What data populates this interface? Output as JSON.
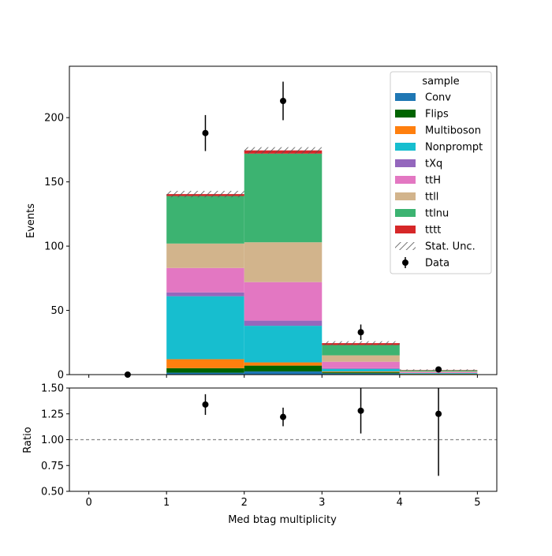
{
  "chart_data": [
    {
      "type": "bar",
      "stacked": true,
      "x_edges": [
        0,
        1,
        2,
        3,
        4,
        5
      ],
      "xlim": [
        -0.25,
        5.25
      ],
      "ylim": [
        0,
        240
      ],
      "ylabel": "Events",
      "y_ticks": [
        0,
        50,
        100,
        150,
        200
      ],
      "legend_title": "sample",
      "legend_position": "top-right",
      "series": [
        {
          "name": "Conv",
          "color": "#1f77b4",
          "values": [
            0,
            1.5,
            2.5,
            1.0,
            0.3
          ]
        },
        {
          "name": "Flips",
          "color": "#006400",
          "values": [
            0,
            3.5,
            4.5,
            0.8,
            0.2
          ]
        },
        {
          "name": "Multiboson",
          "color": "#ff7f0e",
          "values": [
            0,
            7.0,
            2.5,
            0.6,
            0.2
          ]
        },
        {
          "name": "Nonprompt",
          "color": "#17becf",
          "values": [
            0,
            49.0,
            28.5,
            2.0,
            0.5
          ]
        },
        {
          "name": "tXq",
          "color": "#9467bd",
          "values": [
            0,
            3.0,
            4.0,
            0.6,
            0.1
          ]
        },
        {
          "name": "ttH",
          "color": "#e377c2",
          "values": [
            0,
            19.0,
            30.0,
            5.0,
            0.7
          ]
        },
        {
          "name": "ttll",
          "color": "#d2b48c",
          "values": [
            0,
            19.0,
            31.0,
            5.0,
            0.5
          ]
        },
        {
          "name": "ttlnu",
          "color": "#3cb371",
          "values": [
            0,
            37.0,
            69.0,
            8.0,
            0.8
          ]
        },
        {
          "name": "tttt",
          "color": "#d62728",
          "values": [
            0,
            1.5,
            2.5,
            1.5,
            0.3
          ]
        }
      ],
      "stat_unc": {
        "name": "Stat. Unc.",
        "values": [
          0,
          2.5,
          2.5,
          1.5,
          0.5
        ]
      },
      "data": {
        "name": "Data",
        "x": [
          0.5,
          1.5,
          2.5,
          3.5,
          4.5
        ],
        "y": [
          0,
          188,
          213,
          33,
          4
        ],
        "yerr": [
          0,
          14,
          15,
          6,
          2
        ]
      }
    },
    {
      "type": "scatter",
      "xlabel": "Med btag multiplicity",
      "ylabel": "Ratio",
      "xlim": [
        -0.25,
        5.25
      ],
      "ylim": [
        0.5,
        1.5
      ],
      "x_ticks": [
        0,
        1,
        2,
        3,
        4,
        5
      ],
      "y_ticks": [
        "0.50",
        "0.75",
        "1.00",
        "1.25",
        "1.50"
      ],
      "reference_line": 1.0,
      "points": {
        "x": [
          1.5,
          2.5,
          3.5,
          4.5
        ],
        "y": [
          1.34,
          1.22,
          1.28,
          1.25
        ],
        "yerr_low": [
          0.1,
          0.09,
          0.22,
          0.6
        ],
        "yerr_high": [
          0.1,
          0.09,
          0.24,
          0.6
        ]
      }
    }
  ]
}
